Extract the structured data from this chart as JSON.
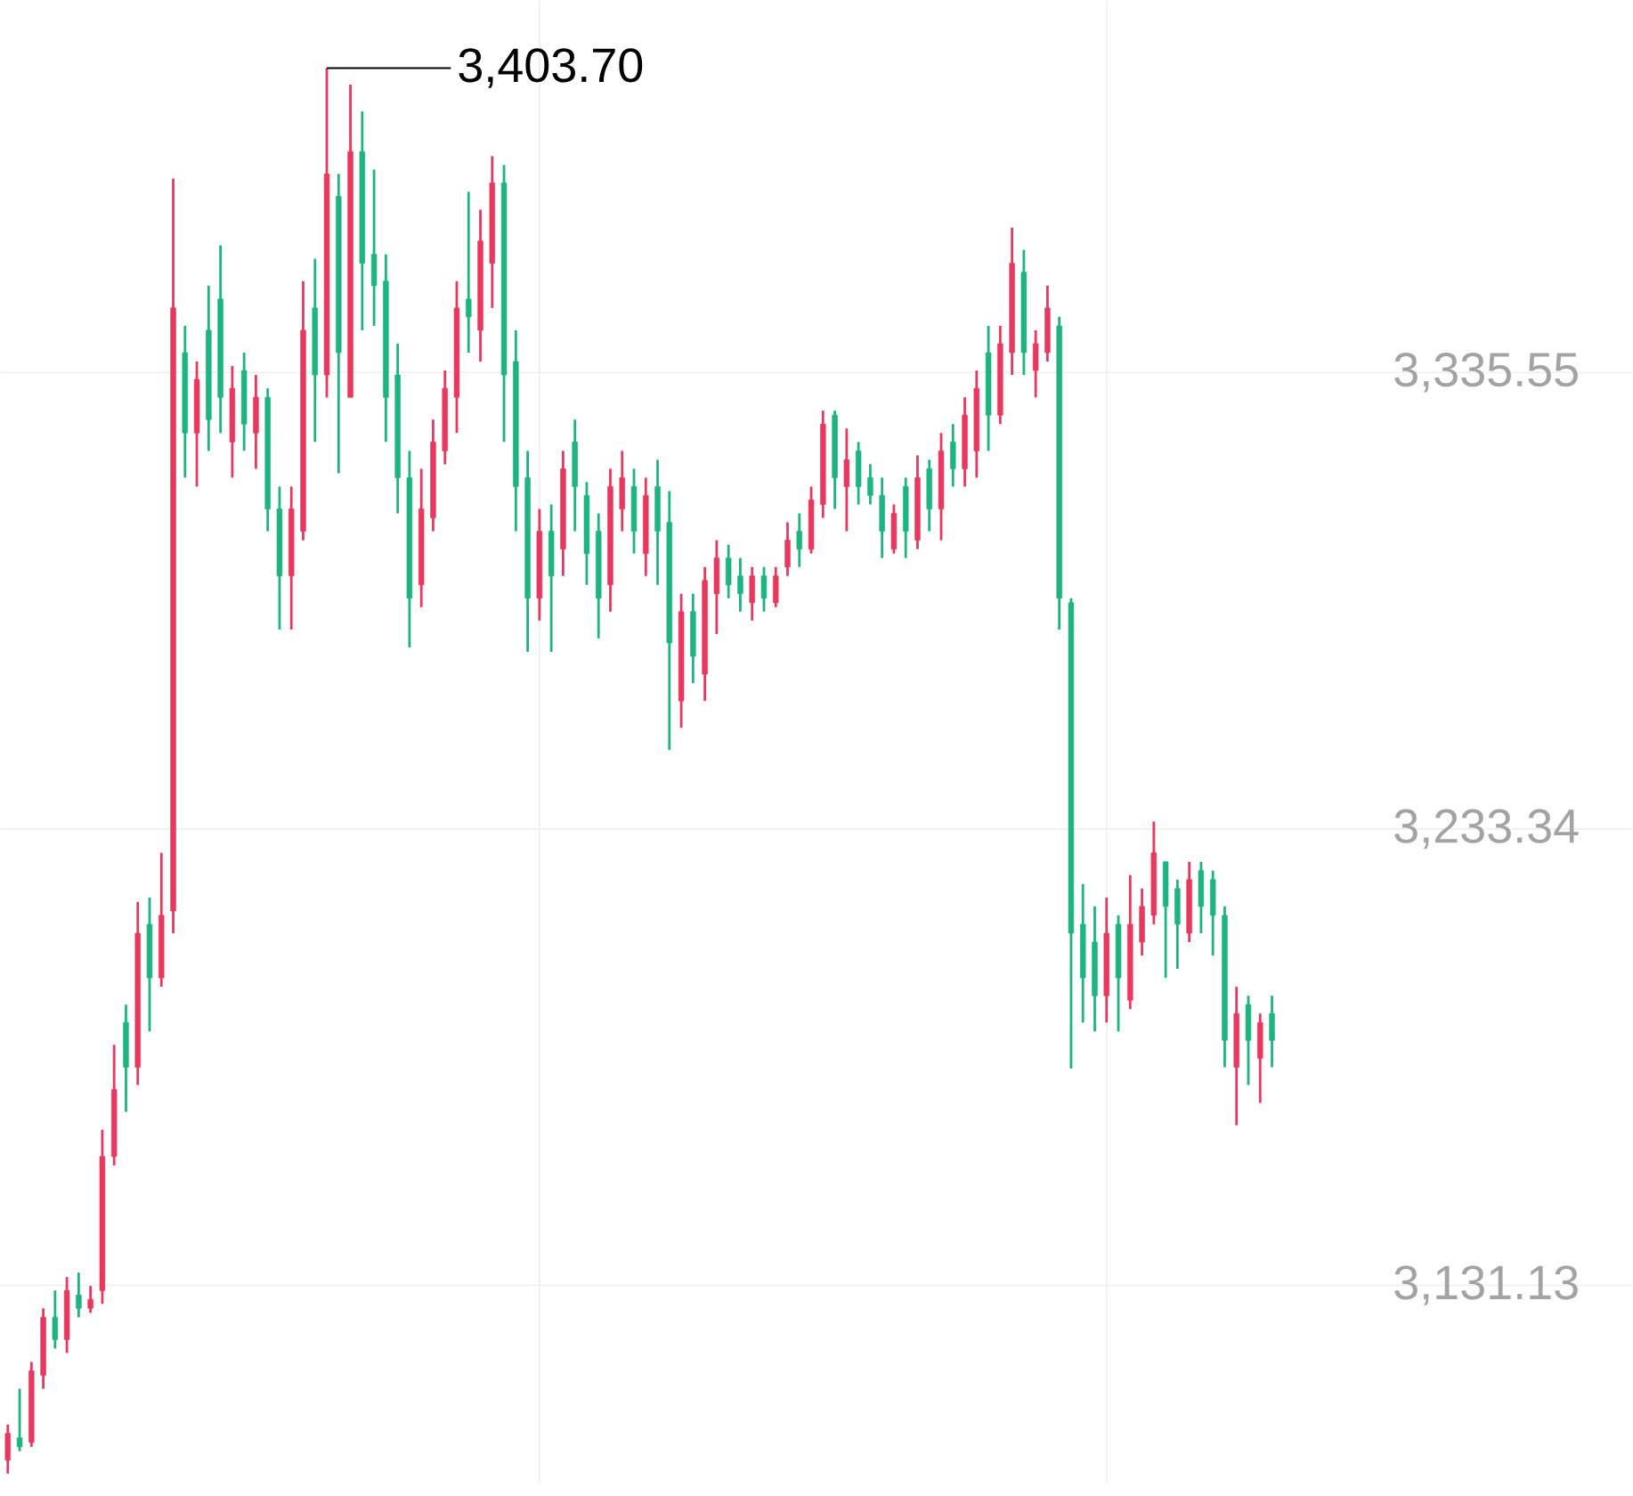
{
  "chart_data": {
    "type": "candlestick",
    "categories": [
      null,
      null,
      null,
      null,
      null,
      null,
      null,
      null,
      null,
      null,
      null,
      null,
      null,
      null,
      null,
      null,
      null,
      null,
      null,
      null,
      null,
      null,
      null,
      null,
      null,
      null,
      null,
      null,
      null,
      null,
      null,
      null,
      null,
      null,
      null,
      null,
      null,
      null,
      null,
      null,
      null,
      null,
      null,
      null,
      null,
      null,
      null,
      null,
      null,
      null,
      null,
      null,
      null,
      null,
      null,
      null,
      null,
      null,
      null,
      null,
      null,
      null,
      null,
      null,
      null,
      null,
      null,
      null,
      null,
      null,
      null,
      null,
      null,
      null,
      null,
      null,
      null,
      null,
      null,
      null,
      null,
      null,
      null,
      null,
      null,
      null,
      null,
      null,
      null,
      null,
      null,
      null,
      null,
      null,
      null,
      null,
      null,
      null,
      null,
      null,
      null,
      null,
      null,
      null,
      null,
      null,
      null,
      null
    ],
    "ohlc": [
      [
        3092,
        3100,
        3089,
        3098
      ],
      [
        3097,
        3108,
        3094,
        3095
      ],
      [
        3096,
        3114,
        3095,
        3112
      ],
      [
        3111,
        3126,
        3108,
        3124
      ],
      [
        3124,
        3130,
        3117,
        3119
      ],
      [
        3119,
        3133,
        3116,
        3130
      ],
      [
        3129,
        3134,
        3124,
        3126
      ],
      [
        3126,
        3131,
        3125,
        3128
      ],
      [
        3130,
        3166,
        3127,
        3160
      ],
      [
        3160,
        3185,
        3158,
        3175
      ],
      [
        3190,
        3194,
        3170,
        3180
      ],
      [
        3180,
        3217,
        3176,
        3210
      ],
      [
        3212,
        3218,
        3188,
        3200
      ],
      [
        3200,
        3228,
        3198,
        3214
      ],
      [
        3215,
        3379,
        3210,
        3350
      ],
      [
        3340,
        3346,
        3312,
        3322
      ],
      [
        3322,
        3338,
        3310,
        3334
      ],
      [
        3345,
        3355,
        3318,
        3325
      ],
      [
        3352,
        3364,
        3322,
        3330
      ],
      [
        3320,
        3337,
        3312,
        3332
      ],
      [
        3336,
        3340,
        3318,
        3324
      ],
      [
        3322,
        3335,
        3314,
        3330
      ],
      [
        3330,
        3332,
        3300,
        3305
      ],
      [
        3305,
        3310,
        3278,
        3290
      ],
      [
        3290,
        3310,
        3278,
        3305
      ],
      [
        3300,
        3356,
        3298,
        3345
      ],
      [
        3350,
        3361,
        3320,
        3335
      ],
      [
        3335,
        3403.7,
        3330,
        3380
      ],
      [
        3375,
        3380,
        3313,
        3340
      ],
      [
        3330,
        3400,
        3330,
        3385
      ],
      [
        3385,
        3394,
        3345,
        3360
      ],
      [
        3362,
        3381,
        3346,
        3355
      ],
      [
        3356,
        3362,
        3320,
        3330
      ],
      [
        3335,
        3342,
        3304,
        3312
      ],
      [
        3312,
        3318,
        3274,
        3285
      ],
      [
        3288,
        3314,
        3283,
        3305
      ],
      [
        3303,
        3325,
        3300,
        3320
      ],
      [
        3318,
        3336,
        3315,
        3332
      ],
      [
        3330,
        3356,
        3322,
        3350
      ],
      [
        3352,
        3376,
        3340,
        3348
      ],
      [
        3345,
        3372,
        3338,
        3365
      ],
      [
        3360,
        3384,
        3350,
        3378
      ],
      [
        3378,
        3382,
        3320,
        3335
      ],
      [
        3338,
        3345,
        3300,
        3310
      ],
      [
        3312,
        3318,
        3273,
        3285
      ],
      [
        3285,
        3305,
        3280,
        3300
      ],
      [
        3300,
        3306,
        3273,
        3290
      ],
      [
        3296,
        3318,
        3290,
        3314
      ],
      [
        3320,
        3325,
        3300,
        3310
      ],
      [
        3308,
        3311,
        3288,
        3295
      ],
      [
        3300,
        3304,
        3276,
        3285
      ],
      [
        3288,
        3314,
        3282,
        3310
      ],
      [
        3305,
        3318,
        3300,
        3312
      ],
      [
        3310,
        3314,
        3295,
        3300
      ],
      [
        3295,
        3312,
        3290,
        3308
      ],
      [
        3310,
        3316,
        3288,
        3300
      ],
      [
        3302,
        3309,
        3251,
        3275
      ],
      [
        3262,
        3286,
        3256,
        3282
      ],
      [
        3282,
        3286,
        3266,
        3272
      ],
      [
        3268,
        3292,
        3262,
        3289
      ],
      [
        3286,
        3298,
        3277,
        3294
      ],
      [
        3294,
        3297,
        3285,
        3288
      ],
      [
        3290,
        3294,
        3282,
        3286
      ],
      [
        3284,
        3292,
        3280,
        3290
      ],
      [
        3290,
        3292,
        3282,
        3285
      ],
      [
        3284,
        3292,
        3283,
        3290
      ],
      [
        3292,
        3302,
        3290,
        3298
      ],
      [
        3300,
        3304,
        3292,
        3296
      ],
      [
        3296,
        3310,
        3295,
        3307
      ],
      [
        3306,
        3327,
        3303,
        3324
      ],
      [
        3326,
        3327,
        3305,
        3312
      ],
      [
        3310,
        3323,
        3300,
        3316
      ],
      [
        3318,
        3320,
        3306,
        3310
      ],
      [
        3312,
        3315,
        3306,
        3308
      ],
      [
        3308,
        3312,
        3294,
        3300
      ],
      [
        3296,
        3306,
        3295,
        3304
      ],
      [
        3310,
        3312,
        3294,
        3300
      ],
      [
        3298,
        3317,
        3296,
        3312
      ],
      [
        3314,
        3316,
        3300,
        3305
      ],
      [
        3305,
        3322,
        3298,
        3318
      ],
      [
        3320,
        3324,
        3310,
        3314
      ],
      [
        3314,
        3330,
        3310,
        3326
      ],
      [
        3318,
        3336,
        3312,
        3332
      ],
      [
        3340,
        3346,
        3318,
        3326
      ],
      [
        3326,
        3346,
        3324,
        3342
      ],
      [
        3340,
        3368,
        3335,
        3360
      ],
      [
        3358,
        3363,
        3335,
        3340
      ],
      [
        3336,
        3345,
        3330,
        3342
      ],
      [
        3340,
        3355,
        3338,
        3350
      ],
      [
        3346,
        3348,
        3278,
        3285
      ],
      [
        3284,
        3285,
        3179.7,
        3210
      ],
      [
        3212,
        3221,
        3190,
        3200
      ],
      [
        3208,
        3216,
        3188,
        3196
      ],
      [
        3196,
        3218,
        3190,
        3210
      ],
      [
        3212,
        3214,
        3188,
        3200
      ],
      [
        3195,
        3223,
        3193,
        3212
      ],
      [
        3208,
        3220,
        3205,
        3216
      ],
      [
        3214,
        3235,
        3212,
        3228
      ],
      [
        3226,
        3226,
        3200,
        3216
      ],
      [
        3220,
        3222,
        3202,
        3212
      ],
      [
        3210,
        3226,
        3208,
        3222
      ],
      [
        3224,
        3226,
        3210,
        3216
      ],
      [
        3222,
        3224,
        3205,
        3214
      ],
      [
        3214,
        3216,
        3180,
        3186
      ],
      [
        3180,
        3198,
        3167,
        3192
      ],
      [
        3194,
        3196,
        3176,
        3186
      ],
      [
        3182,
        3192,
        3172,
        3190
      ],
      [
        3192,
        3196,
        3180,
        3186
      ]
    ],
    "ylim": [
      3086.9,
      3418.8
    ],
    "yticks": [
      {
        "value": 3131.13,
        "label": "3,131.13"
      },
      {
        "value": 3233.34,
        "label": "3,233.34"
      },
      {
        "value": 3335.55,
        "label": "3,335.55"
      }
    ],
    "tick_labels": "y",
    "grid": true,
    "annotations": [
      "3,403.70"
    ]
  }
}
